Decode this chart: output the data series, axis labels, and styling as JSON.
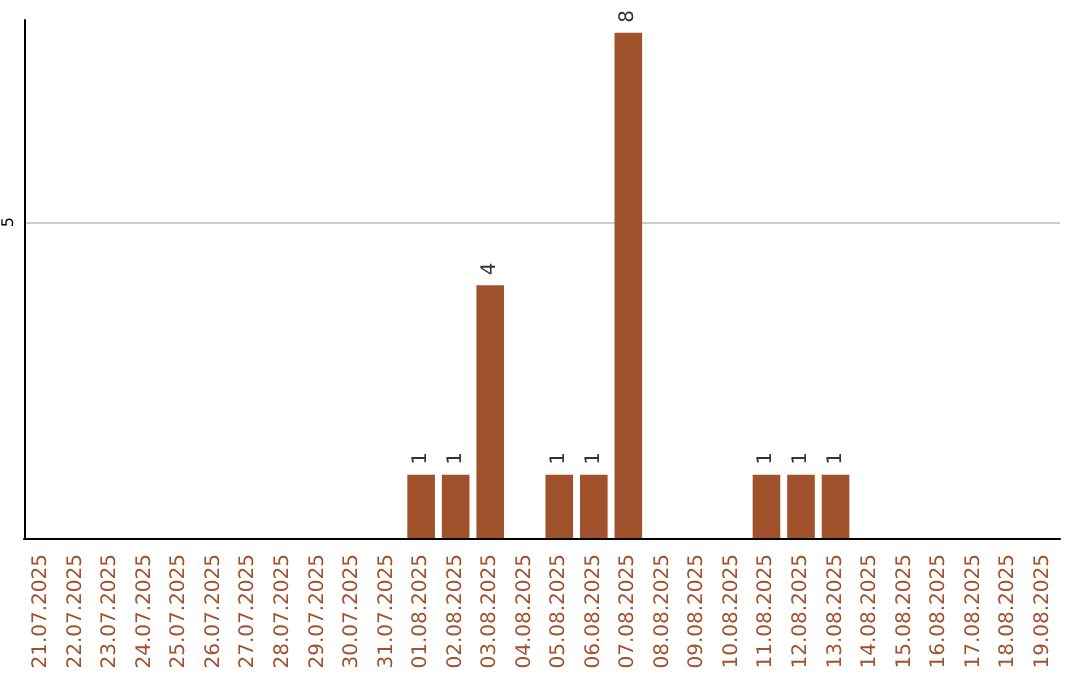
{
  "chart_data": {
    "type": "bar",
    "categories": [
      "21.07.2025",
      "22.07.2025",
      "23.07.2025",
      "24.07.2025",
      "25.07.2025",
      "26.07.2025",
      "27.07.2025",
      "28.07.2025",
      "29.07.2025",
      "30.07.2025",
      "31.07.2025",
      "01.08.2025",
      "02.08.2025",
      "03.08.2025",
      "04.08.2025",
      "05.08.2025",
      "06.08.2025",
      "07.08.2025",
      "08.08.2025",
      "09.08.2025",
      "10.08.2025",
      "11.08.2025",
      "12.08.2025",
      "13.08.2025",
      "14.08.2025",
      "15.08.2025",
      "16.08.2025",
      "17.08.2025",
      "18.08.2025",
      "19.08.2025"
    ],
    "values": [
      0,
      0,
      0,
      0,
      0,
      0,
      0,
      0,
      0,
      0,
      0,
      1,
      1,
      4,
      0,
      1,
      1,
      8,
      0,
      0,
      0,
      1,
      1,
      1,
      0,
      0,
      0,
      0,
      0,
      0
    ],
    "value_labels": [
      null,
      null,
      null,
      null,
      null,
      null,
      null,
      null,
      null,
      null,
      null,
      "1",
      "1",
      "4",
      null,
      "1",
      "1",
      "8",
      null,
      null,
      null,
      "1",
      "1",
      "1",
      null,
      null,
      null,
      null,
      null,
      null
    ],
    "color": "#a0522d",
    "ylim": [
      0,
      8.2
    ],
    "yticks": [
      5
    ],
    "grid": "y"
  }
}
